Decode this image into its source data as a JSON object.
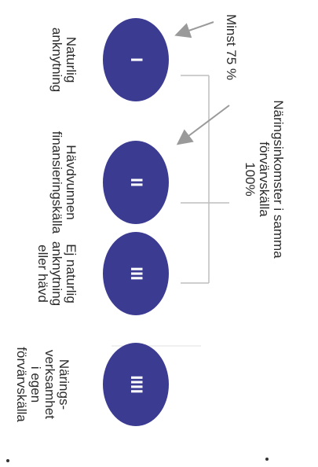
{
  "diagram": {
    "title_lines": [
      "Näringsinkomster i samma",
      "förvärvskälla",
      "100%"
    ],
    "threshold_label": "Minst 75 %",
    "colors": {
      "ellipse": "#3b3b92",
      "connector": "#bdbdbd",
      "arrow": "#9a9a9a",
      "text": "#2b2b2b"
    },
    "categories": [
      {
        "id": "naturlig",
        "numeral": "I",
        "label_lines": [
          "Naturlig",
          "anknytning"
        ]
      },
      {
        "id": "havdvunnen",
        "numeral": "II",
        "label_lines": [
          "Hävdvunnen",
          "finansieringskälla"
        ]
      },
      {
        "id": "ej-naturlig",
        "numeral": "III",
        "label_lines": [
          "Ej naturlig",
          "anknytning",
          "eller hävd"
        ]
      },
      {
        "id": "naringsverksamhet",
        "numeral": "IIII",
        "label_lines": [
          "Närings-",
          "verksamhet",
          "i egen",
          "förvärvskälla"
        ]
      }
    ]
  }
}
